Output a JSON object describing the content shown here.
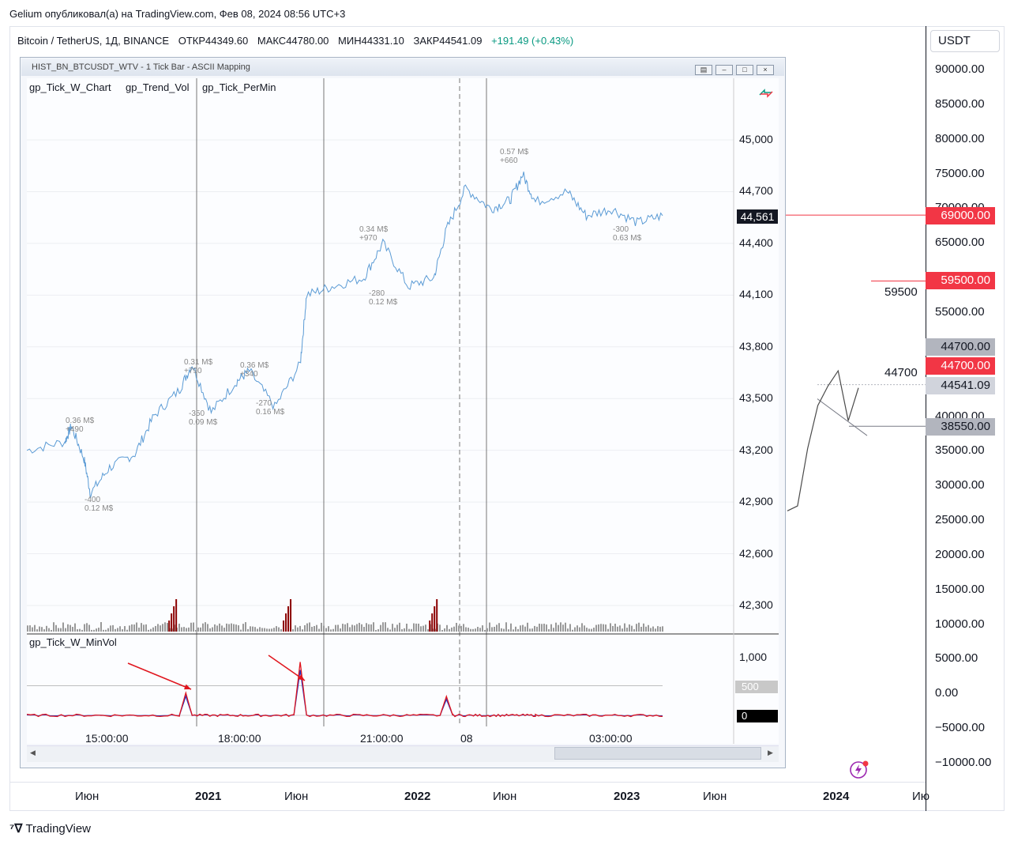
{
  "caption": "Gelium опубликовал(а) на TradingView.com, Фев 08, 2024 08:56 UTC+3",
  "symbol": {
    "name": "Bitcoin / TetherUS, 1Д, BINANCE",
    "open": "ОТКР44349.60",
    "high": "МАКС44780.00",
    "low": "МИН44331.10",
    "close": "ЗАКР44541.09",
    "change": "+191.49 (+0.43%)"
  },
  "currency_button": "USDT",
  "brand": "TradingView",
  "colors": {
    "up": "#089981",
    "down": "#f23645",
    "inner_price": "#5b9bd5",
    "vol": "#999999",
    "vol_hi": "#8b0000",
    "minvol_red": "#e0161e",
    "minvol_blue": "#1d34c8"
  },
  "chart_data": [
    {
      "type": "line",
      "title": "Bitcoin / TetherUS, 1Д, BINANCE",
      "y_ticks": [
        "90000.00",
        "85000.00",
        "80000.00",
        "75000.00",
        "70000.00",
        "65000.00",
        "60000.00",
        "55000.00",
        "50000.00",
        "45000.00",
        "40000.00",
        "35000.00",
        "30000.00",
        "25000.00",
        "20000.00",
        "15000.00",
        "10000.00",
        "5000.00",
        "0.00",
        "−5000.00",
        "−10000.00"
      ],
      "x_ticks": [
        "Июн",
        "2021",
        "Июн",
        "2022",
        "Июн",
        "2023",
        "Июн",
        "2024",
        "Ию"
      ],
      "price_labels": [
        {
          "text": "69000.00",
          "style": "red"
        },
        {
          "text": "59500.00",
          "style": "red"
        },
        {
          "text": "44700.00",
          "style": "gray"
        },
        {
          "text": "44700.00",
          "style": "red"
        },
        {
          "text": "44541.09",
          "style": "light"
        },
        {
          "text": "38550.00",
          "style": "gray"
        }
      ],
      "line_labels": [
        "59500",
        "44700"
      ],
      "x": [
        "2023-09",
        "2023-10",
        "2023-11",
        "2023-12",
        "2024-01",
        "2024-01-12",
        "2024-01-23",
        "2024-02-08"
      ],
      "values": [
        26000,
        27500,
        35000,
        42000,
        44000,
        47000,
        39000,
        44541.09
      ]
    },
    {
      "type": "line",
      "title": "HIST_BN_BTCUSDT_WTV - 1 Tick Bar - ASCII Mapping",
      "indicators": [
        "gp_Tick_W_Chart",
        "gp_Trend_Vol",
        "gp_Tick_PerMin"
      ],
      "y_ticks": [
        "45,000",
        "44,700",
        "44,400",
        "44,100",
        "43,800",
        "43,500",
        "43,200",
        "42,900",
        "42,600",
        "42,300"
      ],
      "last_price": "44,561",
      "x_ticks": [
        "15:00:00",
        "18:00:00",
        "21:00:00",
        "08",
        "03:00:00"
      ],
      "annotations": [
        {
          "l1": "0.36 M$",
          "l2": "+490",
          "x": 0.063,
          "y": 43340
        },
        {
          "l1": "-400",
          "l2": "0.12 M$",
          "x": 0.095,
          "y": 42880
        },
        {
          "l1": "0.31 M$",
          "l2": "+790",
          "x": 0.257,
          "y": 43680
        },
        {
          "l1": "-350",
          "l2": "0.09 M$",
          "x": 0.265,
          "y": 43380
        },
        {
          "l1": "0.36 M$",
          "l2": "+340",
          "x": 0.35,
          "y": 43660
        },
        {
          "l1": "-270",
          "l2": "0.16 M$",
          "x": 0.375,
          "y": 43440
        },
        {
          "l1": "0.34 M$",
          "l2": "+970",
          "x": 0.545,
          "y": 44450
        },
        {
          "l1": "-280",
          "l2": "0.12 M$",
          "x": 0.56,
          "y": 44080
        },
        {
          "l1": "0.57 M$",
          "l2": "+660",
          "x": 0.775,
          "y": 44900
        },
        {
          "l1": "-300",
          "l2": "0.63 M$",
          "x": 0.96,
          "y": 44450
        }
      ],
      "x": [
        0.0,
        0.06,
        0.07,
        0.09,
        0.1,
        0.13,
        0.17,
        0.2,
        0.24,
        0.26,
        0.29,
        0.33,
        0.35,
        0.39,
        0.43,
        0.44,
        0.48,
        0.53,
        0.56,
        0.6,
        0.64,
        0.66,
        0.69,
        0.73,
        0.76,
        0.78,
        0.8,
        0.85,
        0.88,
        0.92,
        0.96,
        1.0
      ],
      "values": [
        43200,
        43250,
        43340,
        43150,
        42950,
        43100,
        43180,
        43400,
        43550,
        43700,
        43420,
        43600,
        43660,
        43450,
        43700,
        44100,
        44150,
        44200,
        44400,
        44150,
        44200,
        44480,
        44720,
        44600,
        44650,
        44800,
        44640,
        44700,
        44560,
        44600,
        44520,
        44561
      ],
      "volume_spikes": [
        0.23,
        0.41,
        0.64
      ]
    },
    {
      "type": "line",
      "title": "gp_Tick_W_MinVol",
      "y_ticks": [
        "1,000",
        "500",
        "0"
      ],
      "series": [
        {
          "name": "gp_Tick_W_MinVol",
          "x": [
            0.0,
            0.24,
            0.25,
            0.26,
            0.42,
            0.43,
            0.44,
            0.65,
            0.66,
            0.67,
            0.8,
            1.0
          ],
          "values": [
            0,
            0,
            380,
            0,
            0,
            900,
            0,
            0,
            320,
            0,
            0,
            0
          ]
        }
      ]
    }
  ]
}
